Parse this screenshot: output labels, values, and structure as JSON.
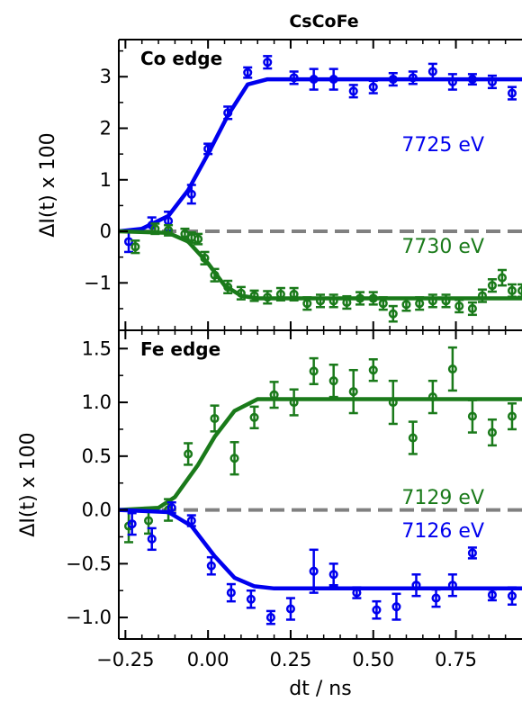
{
  "title": "CsCoFe",
  "colors": {
    "blue": "#0000ee",
    "green": "#1a7a1a",
    "zero_line": "#808080"
  },
  "chart_data": [
    {
      "type": "scatter",
      "panel_label": "Co edge",
      "ylabel": "ΔI(t) x 100",
      "xlim": [
        -0.27,
        0.95
      ],
      "ylim": [
        -1.92,
        3.72
      ],
      "yticks": [
        -1,
        0,
        1,
        2,
        3
      ],
      "ytick_labels": [
        "−1",
        "0",
        "1",
        "2",
        "3"
      ],
      "zero_line": true,
      "series": [
        {
          "name": "7725 eV",
          "color": "blue",
          "points": [
            {
              "x": -0.24,
              "y": -0.2,
              "err": 0.2
            },
            {
              "x": -0.17,
              "y": 0.12,
              "err": 0.15
            },
            {
              "x": -0.12,
              "y": 0.2,
              "err": 0.18
            },
            {
              "x": -0.05,
              "y": 0.72,
              "err": 0.18
            },
            {
              "x": 0.0,
              "y": 1.6,
              "err": 0.1
            },
            {
              "x": 0.06,
              "y": 2.3,
              "err": 0.12
            },
            {
              "x": 0.12,
              "y": 3.08,
              "err": 0.1
            },
            {
              "x": 0.18,
              "y": 3.28,
              "err": 0.12
            },
            {
              "x": 0.26,
              "y": 2.98,
              "err": 0.12
            },
            {
              "x": 0.32,
              "y": 2.95,
              "err": 0.2
            },
            {
              "x": 0.38,
              "y": 2.95,
              "err": 0.2
            },
            {
              "x": 0.44,
              "y": 2.72,
              "err": 0.12
            },
            {
              "x": 0.5,
              "y": 2.8,
              "err": 0.12
            },
            {
              "x": 0.56,
              "y": 2.95,
              "err": 0.12
            },
            {
              "x": 0.62,
              "y": 2.98,
              "err": 0.12
            },
            {
              "x": 0.68,
              "y": 3.1,
              "err": 0.15
            },
            {
              "x": 0.74,
              "y": 2.9,
              "err": 0.15
            },
            {
              "x": 0.8,
              "y": 2.95,
              "err": 0.1
            },
            {
              "x": 0.86,
              "y": 2.9,
              "err": 0.12
            },
            {
              "x": 0.92,
              "y": 2.68,
              "err": 0.12
            }
          ],
          "fit": [
            {
              "x": -0.27,
              "y": 0.0
            },
            {
              "x": -0.2,
              "y": 0.05
            },
            {
              "x": -0.12,
              "y": 0.3
            },
            {
              "x": -0.06,
              "y": 0.8
            },
            {
              "x": 0.0,
              "y": 1.5
            },
            {
              "x": 0.06,
              "y": 2.25
            },
            {
              "x": 0.12,
              "y": 2.85
            },
            {
              "x": 0.18,
              "y": 2.95
            },
            {
              "x": 0.95,
              "y": 2.95
            }
          ]
        },
        {
          "name": "7730 eV",
          "color": "green",
          "points": [
            {
              "x": -0.22,
              "y": -0.3,
              "err": 0.12
            },
            {
              "x": -0.16,
              "y": 0.05,
              "err": 0.1
            },
            {
              "x": -0.12,
              "y": 0.02,
              "err": 0.1
            },
            {
              "x": -0.07,
              "y": -0.05,
              "err": 0.1
            },
            {
              "x": -0.05,
              "y": -0.12,
              "err": 0.1
            },
            {
              "x": -0.03,
              "y": -0.15,
              "err": 0.1
            },
            {
              "x": -0.01,
              "y": -0.52,
              "err": 0.12
            },
            {
              "x": 0.02,
              "y": -0.85,
              "err": 0.12
            },
            {
              "x": 0.06,
              "y": -1.08,
              "err": 0.12
            },
            {
              "x": 0.1,
              "y": -1.2,
              "err": 0.12
            },
            {
              "x": 0.14,
              "y": -1.25,
              "err": 0.1
            },
            {
              "x": 0.18,
              "y": -1.28,
              "err": 0.12
            },
            {
              "x": 0.22,
              "y": -1.22,
              "err": 0.12
            },
            {
              "x": 0.26,
              "y": -1.22,
              "err": 0.12
            },
            {
              "x": 0.3,
              "y": -1.4,
              "err": 0.12
            },
            {
              "x": 0.34,
              "y": -1.35,
              "err": 0.12
            },
            {
              "x": 0.38,
              "y": -1.35,
              "err": 0.12
            },
            {
              "x": 0.42,
              "y": -1.38,
              "err": 0.12
            },
            {
              "x": 0.46,
              "y": -1.3,
              "err": 0.12
            },
            {
              "x": 0.5,
              "y": -1.3,
              "err": 0.12
            },
            {
              "x": 0.53,
              "y": -1.4,
              "err": 0.12
            },
            {
              "x": 0.56,
              "y": -1.6,
              "err": 0.15
            },
            {
              "x": 0.6,
              "y": -1.42,
              "err": 0.12
            },
            {
              "x": 0.64,
              "y": -1.4,
              "err": 0.12
            },
            {
              "x": 0.68,
              "y": -1.35,
              "err": 0.12
            },
            {
              "x": 0.72,
              "y": -1.35,
              "err": 0.12
            },
            {
              "x": 0.76,
              "y": -1.45,
              "err": 0.12
            },
            {
              "x": 0.8,
              "y": -1.5,
              "err": 0.12
            },
            {
              "x": 0.83,
              "y": -1.25,
              "err": 0.12
            },
            {
              "x": 0.86,
              "y": -1.05,
              "err": 0.12
            },
            {
              "x": 0.89,
              "y": -0.9,
              "err": 0.15
            },
            {
              "x": 0.92,
              "y": -1.15,
              "err": 0.12
            },
            {
              "x": 0.95,
              "y": -1.15,
              "err": 0.12
            }
          ],
          "fit": [
            {
              "x": -0.27,
              "y": 0.0
            },
            {
              "x": -0.12,
              "y": -0.03
            },
            {
              "x": -0.06,
              "y": -0.2
            },
            {
              "x": 0.0,
              "y": -0.62
            },
            {
              "x": 0.05,
              "y": -1.05
            },
            {
              "x": 0.1,
              "y": -1.25
            },
            {
              "x": 0.15,
              "y": -1.3
            },
            {
              "x": 0.95,
              "y": -1.3
            }
          ]
        }
      ]
    },
    {
      "type": "scatter",
      "panel_label": "Fe edge",
      "ylabel": "ΔI(t) x 100",
      "xlabel": "dt / ns",
      "xlim": [
        -0.27,
        0.95
      ],
      "ylim": [
        -1.2,
        1.67
      ],
      "yticks": [
        -1.0,
        -0.5,
        0.0,
        0.5,
        1.0,
        1.5
      ],
      "ytick_labels": [
        "−1.0",
        "−0.5",
        "0.0",
        "0.5",
        "1.0",
        "1.5"
      ],
      "xticks": [
        -0.25,
        0.0,
        0.25,
        0.5,
        0.75
      ],
      "xtick_labels": [
        "−0.25",
        "0.00",
        "0.25",
        "0.50",
        "0.75"
      ],
      "zero_line": true,
      "series": [
        {
          "name": "7129 eV",
          "color": "green",
          "points": [
            {
              "x": -0.24,
              "y": -0.15,
              "err": 0.15
            },
            {
              "x": -0.18,
              "y": -0.1,
              "err": 0.12
            },
            {
              "x": -0.12,
              "y": 0.0,
              "err": 0.1
            },
            {
              "x": -0.06,
              "y": 0.52,
              "err": 0.1
            },
            {
              "x": 0.02,
              "y": 0.85,
              "err": 0.12
            },
            {
              "x": 0.08,
              "y": 0.48,
              "err": 0.15
            },
            {
              "x": 0.14,
              "y": 0.86,
              "err": 0.1
            },
            {
              "x": 0.2,
              "y": 1.07,
              "err": 0.12
            },
            {
              "x": 0.26,
              "y": 1.0,
              "err": 0.12
            },
            {
              "x": 0.32,
              "y": 1.29,
              "err": 0.12
            },
            {
              "x": 0.38,
              "y": 1.2,
              "err": 0.15
            },
            {
              "x": 0.44,
              "y": 1.1,
              "err": 0.2
            },
            {
              "x": 0.5,
              "y": 1.3,
              "err": 0.1
            },
            {
              "x": 0.56,
              "y": 1.0,
              "err": 0.2
            },
            {
              "x": 0.62,
              "y": 0.67,
              "err": 0.15
            },
            {
              "x": 0.68,
              "y": 1.05,
              "err": 0.15
            },
            {
              "x": 0.74,
              "y": 1.31,
              "err": 0.2
            },
            {
              "x": 0.8,
              "y": 0.87,
              "err": 0.15
            },
            {
              "x": 0.86,
              "y": 0.72,
              "err": 0.12
            },
            {
              "x": 0.92,
              "y": 0.87,
              "err": 0.12
            }
          ],
          "fit": [
            {
              "x": -0.27,
              "y": 0.0
            },
            {
              "x": -0.15,
              "y": 0.02
            },
            {
              "x": -0.1,
              "y": 0.12
            },
            {
              "x": -0.03,
              "y": 0.42
            },
            {
              "x": 0.02,
              "y": 0.68
            },
            {
              "x": 0.08,
              "y": 0.92
            },
            {
              "x": 0.15,
              "y": 1.03
            },
            {
              "x": 0.95,
              "y": 1.03
            }
          ]
        },
        {
          "name": "7126 eV",
          "color": "blue",
          "points": [
            {
              "x": -0.23,
              "y": -0.13,
              "err": 0.1
            },
            {
              "x": -0.17,
              "y": -0.27,
              "err": 0.1
            },
            {
              "x": -0.11,
              "y": 0.02,
              "err": 0.05
            },
            {
              "x": -0.05,
              "y": -0.1,
              "err": 0.05
            },
            {
              "x": 0.01,
              "y": -0.52,
              "err": 0.08
            },
            {
              "x": 0.07,
              "y": -0.77,
              "err": 0.08
            },
            {
              "x": 0.13,
              "y": -0.83,
              "err": 0.08
            },
            {
              "x": 0.19,
              "y": -1.0,
              "err": 0.06
            },
            {
              "x": 0.25,
              "y": -0.92,
              "err": 0.1
            },
            {
              "x": 0.32,
              "y": -0.57,
              "err": 0.2
            },
            {
              "x": 0.38,
              "y": -0.6,
              "err": 0.1
            },
            {
              "x": 0.45,
              "y": -0.77,
              "err": 0.05
            },
            {
              "x": 0.51,
              "y": -0.93,
              "err": 0.08
            },
            {
              "x": 0.57,
              "y": -0.9,
              "err": 0.12
            },
            {
              "x": 0.63,
              "y": -0.7,
              "err": 0.1
            },
            {
              "x": 0.69,
              "y": -0.82,
              "err": 0.08
            },
            {
              "x": 0.74,
              "y": -0.7,
              "err": 0.1
            },
            {
              "x": 0.8,
              "y": -0.4,
              "err": 0.05
            },
            {
              "x": 0.86,
              "y": -0.79,
              "err": 0.05
            },
            {
              "x": 0.92,
              "y": -0.8,
              "err": 0.08
            }
          ],
          "fit": [
            {
              "x": -0.27,
              "y": 0.0
            },
            {
              "x": -0.12,
              "y": -0.02
            },
            {
              "x": -0.05,
              "y": -0.15
            },
            {
              "x": 0.02,
              "y": -0.43
            },
            {
              "x": 0.08,
              "y": -0.63
            },
            {
              "x": 0.14,
              "y": -0.71
            },
            {
              "x": 0.2,
              "y": -0.73
            },
            {
              "x": 0.95,
              "y": -0.73
            }
          ]
        }
      ]
    }
  ],
  "annotations": {
    "co_7725": "7725 eV",
    "co_7730": "7730 eV",
    "fe_7129": "7129 eV",
    "fe_7126": "7126 eV"
  }
}
